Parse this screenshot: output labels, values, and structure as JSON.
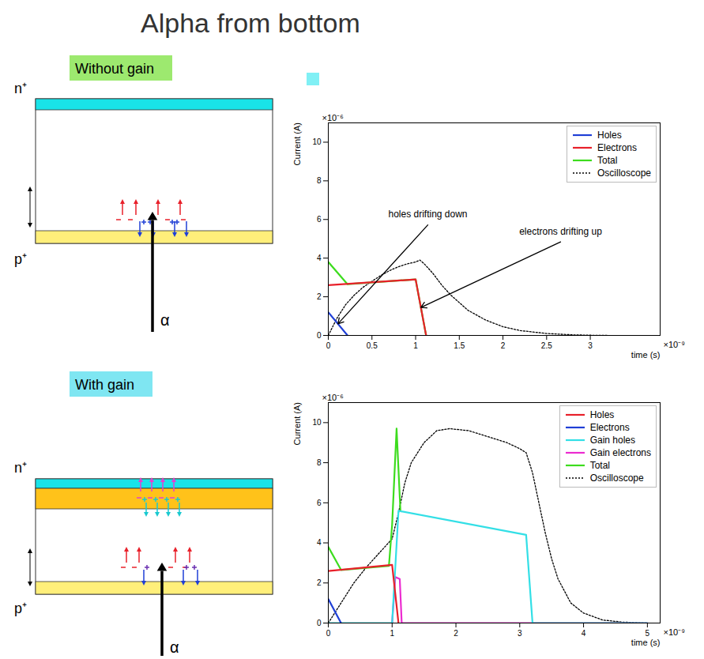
{
  "title": "Alpha from bottom",
  "diagrams": [
    {
      "label": "Without gain",
      "top": "n⁺",
      "bottom": "p⁺",
      "particle": "α"
    },
    {
      "label": "With gain",
      "top": "n⁺",
      "bottom": "p⁺",
      "particle": "α"
    }
  ],
  "chart_data": [
    {
      "type": "line",
      "xlabel": "time (s)",
      "ylabel": "Current (A)",
      "x_multiplier": "×10⁻⁹",
      "y_multiplier": "×10⁻⁶",
      "xlim": [
        0,
        3.8
      ],
      "xticks": [
        0,
        0.5,
        1,
        1.5,
        2,
        2.5,
        3
      ],
      "ylim": [
        0,
        11
      ],
      "yticks": [
        0,
        2,
        4,
        6,
        8,
        10
      ],
      "legend": "top-right",
      "annotations": [
        "holes drifting down",
        "electrons drifting up"
      ],
      "series": [
        {
          "name": "Holes",
          "color": "#1f3fd6",
          "line_style": "solid",
          "x": [
            0,
            0.22
          ],
          "values": [
            1.2,
            0
          ]
        },
        {
          "name": "Electrons",
          "color": "#e8202a",
          "line_style": "solid",
          "x": [
            0,
            1.0,
            1.12
          ],
          "values": [
            2.6,
            2.9,
            0
          ]
        },
        {
          "name": "Total",
          "color": "#3ddc1e",
          "line_style": "solid",
          "x": [
            0,
            0.22,
            1.0,
            1.12
          ],
          "values": [
            3.8,
            2.65,
            2.9,
            0
          ]
        },
        {
          "name": "Oscilloscope",
          "color": "#000000",
          "line_style": "dotted",
          "x": [
            0,
            0.1,
            0.2,
            0.3,
            0.4,
            0.5,
            0.6,
            0.7,
            0.8,
            0.9,
            1.0,
            1.05,
            1.1,
            1.2,
            1.3,
            1.4,
            1.5,
            1.6,
            1.8,
            2.0,
            2.2,
            2.5,
            2.8,
            3.0,
            3.2
          ],
          "values": [
            0,
            0.9,
            1.6,
            2.1,
            2.5,
            2.8,
            3.1,
            3.35,
            3.55,
            3.7,
            3.8,
            3.9,
            3.7,
            3.2,
            2.6,
            2.1,
            1.7,
            1.3,
            0.8,
            0.45,
            0.25,
            0.1,
            0.03,
            0.01,
            0
          ]
        }
      ]
    },
    {
      "type": "line",
      "xlabel": "time (s)",
      "ylabel": "Current (A)",
      "x_multiplier": "×10⁻⁹",
      "y_multiplier": "×10⁻⁶",
      "xlim": [
        0,
        5.2
      ],
      "xticks": [
        0,
        1,
        2,
        3,
        4,
        5
      ],
      "ylim": [
        0,
        11
      ],
      "yticks": [
        0,
        2,
        4,
        6,
        8,
        10
      ],
      "legend": "top-right",
      "series": [
        {
          "name": "Holes",
          "color": "#e8202a",
          "line_style": "solid",
          "x": [
            0,
            1.0,
            1.1
          ],
          "values": [
            2.6,
            2.9,
            0
          ]
        },
        {
          "name": "Electrons",
          "color": "#1f3fd6",
          "line_style": "solid",
          "x": [
            0,
            0.2
          ],
          "values": [
            1.2,
            0
          ]
        },
        {
          "name": "Gain holes",
          "color": "#33dfe6",
          "line_style": "solid",
          "x": [
            0,
            1.0,
            1.1,
            3.1,
            3.2,
            5.0
          ],
          "values": [
            0,
            0,
            5.6,
            4.4,
            0,
            0
          ]
        },
        {
          "name": "Gain electrons",
          "color": "#ec2bd0",
          "line_style": "solid",
          "x": [
            1.0,
            1.05,
            1.12,
            1.15,
            5.0
          ],
          "values": [
            0,
            2.3,
            2.2,
            0,
            0
          ]
        },
        {
          "name": "Total",
          "color": "#3ddc1e",
          "line_style": "solid",
          "x": [
            0,
            0.2,
            0.95,
            1.0,
            1.07,
            1.13
          ],
          "values": [
            3.8,
            2.65,
            2.85,
            4.9,
            9.7,
            5.6
          ]
        },
        {
          "name": "Oscilloscope",
          "color": "#000000",
          "line_style": "dotted",
          "x": [
            0,
            0.2,
            0.4,
            0.6,
            0.8,
            1.0,
            1.1,
            1.2,
            1.3,
            1.5,
            1.7,
            1.9,
            2.2,
            2.5,
            2.8,
            3.0,
            3.1,
            3.2,
            3.3,
            3.4,
            3.5,
            3.6,
            3.8,
            4.0,
            4.3,
            4.6,
            5.0
          ],
          "values": [
            0,
            1.0,
            2.0,
            2.8,
            3.5,
            4.2,
            5.5,
            7.0,
            8.0,
            9.0,
            9.6,
            9.7,
            9.6,
            9.3,
            9.0,
            8.7,
            8.5,
            7.5,
            6.0,
            4.5,
            3.2,
            2.2,
            1.0,
            0.5,
            0.15,
            0.05,
            0
          ]
        }
      ]
    }
  ]
}
